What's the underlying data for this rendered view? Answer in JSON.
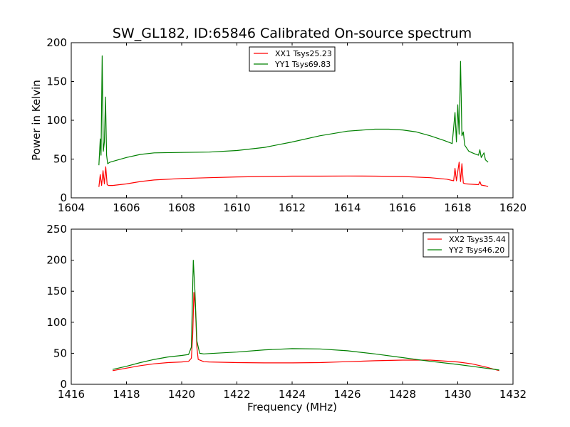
{
  "figure": {
    "title": "SW_GL182, ID:65846 Calibrated On-source spectrum"
  },
  "chart_data": [
    {
      "type": "line",
      "title": "SW_GL182, ID:65846 Calibrated On-source spectrum",
      "xlabel": "",
      "ylabel": "Power in Kelvin",
      "xlim": [
        1604,
        1620
      ],
      "ylim": [
        0,
        200
      ],
      "xticks": [
        "1604",
        "1606",
        "1608",
        "1610",
        "1612",
        "1614",
        "1616",
        "1618",
        "1620"
      ],
      "yticks": [
        "0",
        "50",
        "100",
        "150",
        "200"
      ],
      "grid": false,
      "legend_position": "top-center",
      "series": [
        {
          "name": "XX1 Tsys25.23",
          "color": "#ff0000",
          "points": [
            [
              1605.0,
              14
            ],
            [
              1605.05,
              30
            ],
            [
              1605.1,
              16
            ],
            [
              1605.15,
              35
            ],
            [
              1605.2,
              18
            ],
            [
              1605.25,
              40
            ],
            [
              1605.3,
              17
            ],
            [
              1605.35,
              16
            ],
            [
              1605.5,
              16
            ],
            [
              1606.0,
              18
            ],
            [
              1606.5,
              21
            ],
            [
              1607.0,
              23
            ],
            [
              1608.0,
              25
            ],
            [
              1609.0,
              26
            ],
            [
              1610.0,
              27
            ],
            [
              1611.0,
              27.5
            ],
            [
              1612.0,
              28
            ],
            [
              1613.0,
              28
            ],
            [
              1614.0,
              28.2
            ],
            [
              1615.0,
              28
            ],
            [
              1616.0,
              27.5
            ],
            [
              1617.0,
              26
            ],
            [
              1617.6,
              24
            ],
            [
              1617.85,
              22
            ],
            [
              1617.9,
              38
            ],
            [
              1617.95,
              22
            ],
            [
              1618.05,
              46
            ],
            [
              1618.1,
              21
            ],
            [
              1618.15,
              44
            ],
            [
              1618.2,
              19
            ],
            [
              1618.3,
              18
            ],
            [
              1618.5,
              17.5
            ],
            [
              1618.75,
              17
            ],
            [
              1618.8,
              21
            ],
            [
              1618.85,
              16.5
            ],
            [
              1619.0,
              15.5
            ],
            [
              1619.1,
              14.5
            ]
          ]
        },
        {
          "name": "YY1 Tsys69.83",
          "color": "#008000",
          "points": [
            [
              1605.0,
              42
            ],
            [
              1605.05,
              76
            ],
            [
              1605.08,
              55
            ],
            [
              1605.12,
              183
            ],
            [
              1605.16,
              60
            ],
            [
              1605.2,
              72
            ],
            [
              1605.24,
              130
            ],
            [
              1605.28,
              55
            ],
            [
              1605.32,
              44
            ],
            [
              1605.4,
              46
            ],
            [
              1605.6,
              48
            ],
            [
              1606.0,
              52
            ],
            [
              1606.5,
              56
            ],
            [
              1607.0,
              58
            ],
            [
              1608.0,
              58.5
            ],
            [
              1609.0,
              59
            ],
            [
              1610.0,
              61
            ],
            [
              1611.0,
              65
            ],
            [
              1612.0,
              72
            ],
            [
              1613.0,
              80
            ],
            [
              1614.0,
              86
            ],
            [
              1615.0,
              88.5
            ],
            [
              1615.5,
              88.5
            ],
            [
              1616.0,
              87.5
            ],
            [
              1616.5,
              85
            ],
            [
              1617.0,
              80
            ],
            [
              1617.5,
              74
            ],
            [
              1617.8,
              70
            ],
            [
              1617.9,
              110
            ],
            [
              1617.95,
              72
            ],
            [
              1618.0,
              120
            ],
            [
              1618.05,
              82
            ],
            [
              1618.1,
              176
            ],
            [
              1618.15,
              80
            ],
            [
              1618.2,
              85
            ],
            [
              1618.25,
              68
            ],
            [
              1618.4,
              60
            ],
            [
              1618.6,
              57
            ],
            [
              1618.75,
              55
            ],
            [
              1618.8,
              62
            ],
            [
              1618.85,
              52
            ],
            [
              1618.95,
              58
            ],
            [
              1619.0,
              49
            ],
            [
              1619.1,
              46
            ]
          ]
        }
      ]
    },
    {
      "type": "line",
      "title": "",
      "xlabel": "Frequency (MHz)",
      "ylabel": "",
      "xlim": [
        1416,
        1432
      ],
      "ylim": [
        0,
        250
      ],
      "xticks": [
        "1416",
        "1418",
        "1420",
        "1422",
        "1424",
        "1426",
        "1428",
        "1430",
        "1432"
      ],
      "yticks": [
        "0",
        "50",
        "100",
        "150",
        "200",
        "250"
      ],
      "grid": false,
      "legend_position": "top-right",
      "series": [
        {
          "name": "XX2 Tsys35.44",
          "color": "#ff0000",
          "points": [
            [
              1417.5,
              22
            ],
            [
              1418.0,
              26
            ],
            [
              1418.5,
              30
            ],
            [
              1419.0,
              33
            ],
            [
              1419.5,
              35
            ],
            [
              1420.0,
              36
            ],
            [
              1420.25,
              37
            ],
            [
              1420.35,
              42
            ],
            [
              1420.4,
              80
            ],
            [
              1420.44,
              148
            ],
            [
              1420.5,
              120
            ],
            [
              1420.55,
              60
            ],
            [
              1420.6,
              40
            ],
            [
              1420.8,
              36.5
            ],
            [
              1421.0,
              36
            ],
            [
              1422.0,
              35
            ],
            [
              1423.0,
              34.5
            ],
            [
              1424.0,
              34.5
            ],
            [
              1425.0,
              35
            ],
            [
              1426.0,
              36.5
            ],
            [
              1427.0,
              38
            ],
            [
              1428.0,
              39
            ],
            [
              1429.0,
              39
            ],
            [
              1430.0,
              36
            ],
            [
              1430.5,
              33
            ],
            [
              1431.0,
              28
            ],
            [
              1431.5,
              22
            ]
          ]
        },
        {
          "name": "YY2 Tsys46.20",
          "color": "#008000",
          "points": [
            [
              1417.5,
              24
            ],
            [
              1418.0,
              29
            ],
            [
              1418.5,
              35
            ],
            [
              1419.0,
              40
            ],
            [
              1419.5,
              44
            ],
            [
              1420.0,
              46.5
            ],
            [
              1420.25,
              48
            ],
            [
              1420.35,
              60
            ],
            [
              1420.42,
              200
            ],
            [
              1420.48,
              150
            ],
            [
              1420.55,
              70
            ],
            [
              1420.65,
              50
            ],
            [
              1420.8,
              49
            ],
            [
              1421.0,
              49.5
            ],
            [
              1422.0,
              52
            ],
            [
              1423.0,
              55.5
            ],
            [
              1424.0,
              57.5
            ],
            [
              1425.0,
              57
            ],
            [
              1426.0,
              54
            ],
            [
              1427.0,
              49
            ],
            [
              1428.0,
              43
            ],
            [
              1429.0,
              37
            ],
            [
              1430.0,
              32
            ],
            [
              1430.5,
              29
            ],
            [
              1431.0,
              26
            ],
            [
              1431.5,
              23
            ]
          ]
        }
      ]
    }
  ]
}
